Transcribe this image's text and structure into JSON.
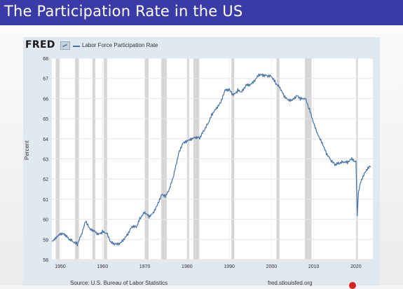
{
  "slide": {
    "title": "The Participation Rate in the US"
  },
  "chart_data": {
    "type": "line",
    "logo": "FRED",
    "legend": [
      "Labor Force Participation Rate"
    ],
    "ylabel": "Percent",
    "xlabel": "",
    "source": "Source: U.S. Bureau of Labor Statistics",
    "site": "fred.stlouisfed.org",
    "xlim": [
      1948,
      2024
    ],
    "ylim": [
      58,
      68
    ],
    "x_ticks": [
      1950,
      1960,
      1970,
      1980,
      1990,
      2000,
      2010,
      2020
    ],
    "y_ticks": [
      58,
      59,
      60,
      61,
      62,
      63,
      64,
      65,
      66,
      67,
      68
    ],
    "grid": true,
    "recessions": [
      [
        1948.9,
        1949.8
      ],
      [
        1953.5,
        1954.4
      ],
      [
        1957.6,
        1958.3
      ],
      [
        1960.3,
        1961.1
      ],
      [
        1969.9,
        1970.9
      ],
      [
        1973.9,
        1975.2
      ],
      [
        1980.0,
        1980.5
      ],
      [
        1981.5,
        1982.9
      ],
      [
        1990.5,
        1991.2
      ],
      [
        2001.2,
        2001.9
      ],
      [
        2007.9,
        2009.5
      ],
      [
        2020.1,
        2020.4
      ]
    ],
    "line_color": "#4572a7",
    "series": [
      {
        "name": "Labor Force Participation Rate",
        "x": [
          1948,
          1949,
          1950,
          1951,
          1952,
          1953,
          1954,
          1955,
          1956,
          1957,
          1958,
          1959,
          1960,
          1961,
          1962,
          1963,
          1964,
          1965,
          1966,
          1967,
          1968,
          1969,
          1970,
          1971,
          1972,
          1973,
          1974,
          1975,
          1976,
          1977,
          1978,
          1979,
          1980,
          1981,
          1982,
          1983,
          1984,
          1985,
          1986,
          1987,
          1988,
          1989,
          1990,
          1991,
          1992,
          1993,
          1994,
          1995,
          1996,
          1997,
          1998,
          1999,
          2000,
          2001,
          2002,
          2003,
          2004,
          2005,
          2006,
          2007,
          2008,
          2009,
          2010,
          2011,
          2012,
          2013,
          2014,
          2015,
          2016,
          2017,
          2018,
          2019,
          2020,
          2020.3,
          2020.6,
          2021,
          2022,
          2023,
          2023.5
        ],
        "values": [
          58.8,
          59.0,
          59.2,
          59.2,
          59.0,
          58.9,
          58.8,
          59.3,
          60.0,
          59.6,
          59.5,
          59.3,
          59.4,
          59.3,
          58.8,
          58.7,
          58.7,
          58.9,
          59.2,
          59.6,
          59.6,
          60.1,
          60.4,
          60.2,
          60.4,
          60.8,
          61.3,
          61.2,
          61.6,
          62.3,
          63.2,
          63.7,
          63.8,
          63.9,
          64.0,
          64.0,
          64.4,
          64.8,
          65.3,
          65.6,
          65.9,
          66.5,
          66.5,
          66.2,
          66.4,
          66.3,
          66.6,
          66.6,
          66.8,
          67.1,
          67.1,
          67.1,
          67.1,
          66.8,
          66.6,
          66.2,
          66.0,
          66.0,
          66.2,
          66.0,
          66.0,
          65.4,
          64.7,
          64.1,
          63.7,
          63.2,
          62.9,
          62.7,
          62.8,
          62.9,
          62.9,
          63.1,
          62.9,
          60.2,
          61.5,
          61.7,
          62.2,
          62.5,
          62.6
        ]
      }
    ]
  }
}
